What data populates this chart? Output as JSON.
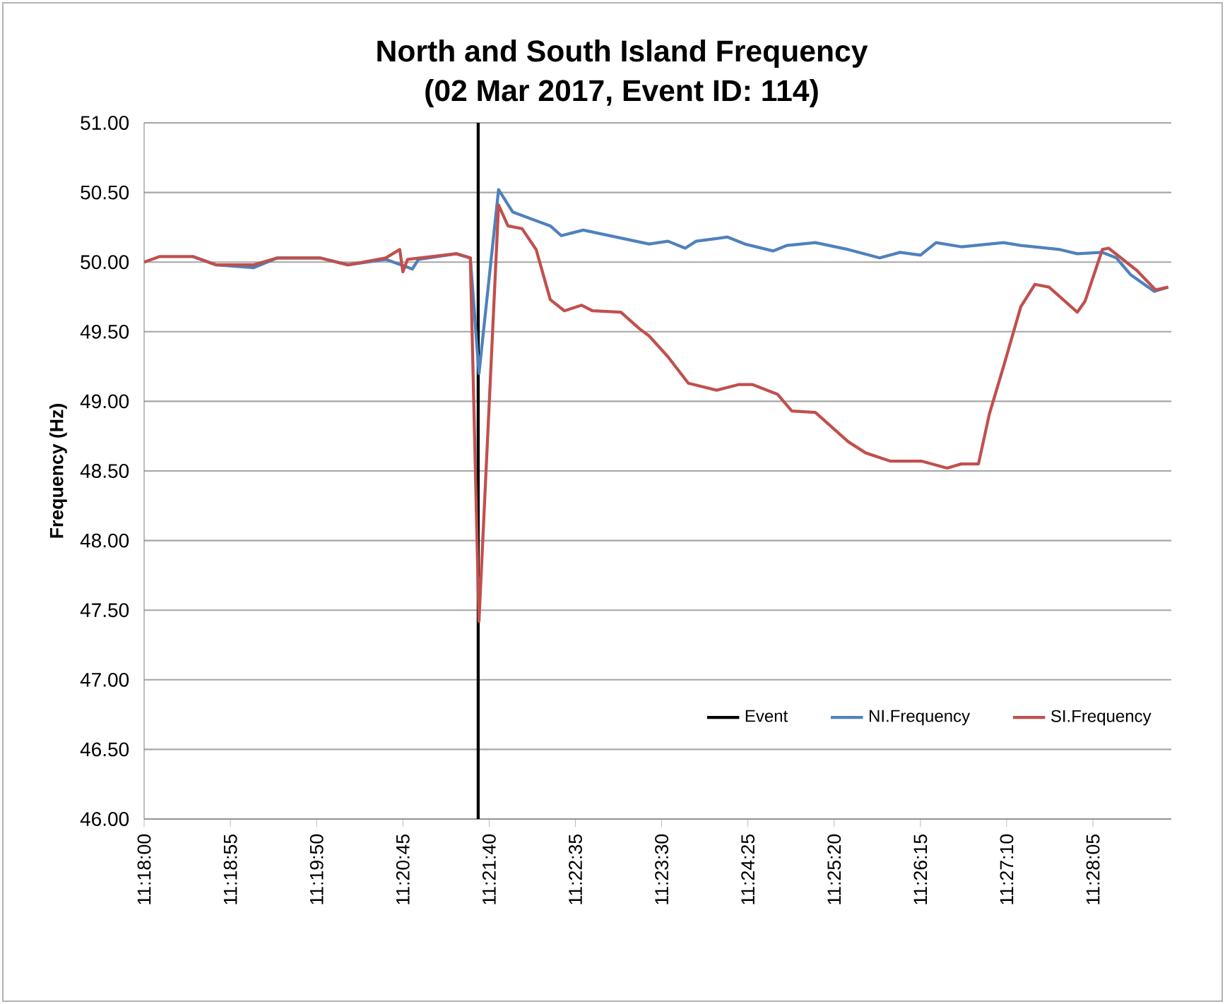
{
  "chart_data": {
    "type": "line",
    "title": "North and South Island Frequency",
    "subtitle": "(02 Mar 2017, Event ID: 114)",
    "ylabel": "Frequency (Hz)",
    "xlim": [
      11.3,
      11.48194
    ],
    "ylim": [
      46,
      51
    ],
    "xticks": [
      {
        "value": 11.3,
        "label": "11:18:00"
      },
      {
        "value": 11.31528,
        "label": "11:18:55"
      },
      {
        "value": 11.33056,
        "label": "11:19:50"
      },
      {
        "value": 11.34583,
        "label": "11:20:45"
      },
      {
        "value": 11.36111,
        "label": "11:21:40"
      },
      {
        "value": 11.37639,
        "label": "11:22:35"
      },
      {
        "value": 11.39167,
        "label": "11:23:30"
      },
      {
        "value": 11.40694,
        "label": "11:24:25"
      },
      {
        "value": 11.42222,
        "label": "11:25:20"
      },
      {
        "value": 11.4375,
        "label": "11:26:15"
      },
      {
        "value": 11.45278,
        "label": "11:27:10"
      },
      {
        "value": 11.46806,
        "label": "11:28:05"
      }
    ],
    "yticks": [
      {
        "value": 46,
        "label": "46.00"
      },
      {
        "value": 46.5,
        "label": "46.50"
      },
      {
        "value": 47,
        "label": "47.00"
      },
      {
        "value": 47.5,
        "label": "47.50"
      },
      {
        "value": 48,
        "label": "48.00"
      },
      {
        "value": 48.5,
        "label": "48.50"
      },
      {
        "value": 49,
        "label": "49.00"
      },
      {
        "value": 49.5,
        "label": "49.50"
      },
      {
        "value": 50,
        "label": "50.00"
      },
      {
        "value": 50.5,
        "label": "50.50"
      },
      {
        "value": 51,
        "label": "51.00"
      }
    ],
    "grid": "y",
    "legend": "bottom right",
    "series": [
      {
        "name": "Event",
        "color": "#000000",
        "x": [
          11.35917,
          11.35917
        ],
        "values": [
          46,
          51
        ]
      },
      {
        "name": "NI.Frequency",
        "color": "#4f81bd",
        "x": [
          11.30861,
          11.31278,
          11.31944,
          11.32361,
          11.33111,
          11.33611,
          11.34278,
          11.3475,
          11.34861,
          11.35528,
          11.35778,
          11.35931,
          11.36278,
          11.36528,
          11.37194,
          11.37389,
          11.37778,
          11.38944,
          11.39278,
          11.39583,
          11.39778,
          11.40333,
          11.40639,
          11.41139,
          11.41389,
          11.41889,
          11.42472,
          11.43028,
          11.43389,
          11.4375,
          11.44028,
          11.44472,
          11.45222,
          11.45528,
          11.46222,
          11.46528,
          11.46972,
          11.47222,
          11.47472,
          11.47889,
          11.48139
        ],
        "values": [
          50.04,
          49.98,
          49.96,
          50.03,
          50.03,
          49.98,
          50.02,
          49.95,
          50.02,
          50.06,
          50.03,
          49.2,
          50.52,
          50.36,
          50.26,
          50.19,
          50.23,
          50.13,
          50.15,
          50.1,
          50.15,
          50.18,
          50.13,
          50.08,
          50.12,
          50.14,
          50.09,
          50.03,
          50.07,
          50.05,
          50.14,
          50.11,
          50.14,
          50.12,
          50.09,
          50.06,
          50.07,
          50.03,
          49.91,
          49.79,
          49.82
        ]
      },
      {
        "name": "SI.Frequency",
        "color": "#c0504d",
        "x": [
          11.3,
          11.30278,
          11.30861,
          11.31278,
          11.31944,
          11.32361,
          11.33111,
          11.33611,
          11.34278,
          11.34528,
          11.34583,
          11.34667,
          11.35528,
          11.35778,
          11.35931,
          11.36278,
          11.36444,
          11.36694,
          11.36944,
          11.37194,
          11.37444,
          11.3775,
          11.37944,
          11.38444,
          11.38778,
          11.38944,
          11.39278,
          11.39639,
          11.40139,
          11.40528,
          11.40778,
          11.41222,
          11.41472,
          11.41889,
          11.42472,
          11.42778,
          11.43222,
          11.43778,
          11.44222,
          11.44472,
          11.44778,
          11.44972,
          11.45222,
          11.45528,
          11.45778,
          11.46028,
          11.46528,
          11.46667,
          11.46972,
          11.47083,
          11.47583,
          11.47917,
          11.48139
        ],
        "values": [
          50.0,
          50.04,
          50.04,
          49.98,
          49.98,
          50.03,
          50.03,
          49.98,
          50.03,
          50.09,
          49.93,
          50.02,
          50.06,
          50.03,
          47.42,
          50.41,
          50.26,
          50.24,
          50.09,
          49.73,
          49.65,
          49.69,
          49.65,
          49.64,
          49.52,
          49.47,
          49.32,
          49.13,
          49.08,
          49.12,
          49.12,
          49.05,
          48.93,
          48.92,
          48.71,
          48.63,
          48.57,
          48.57,
          48.52,
          48.55,
          48.55,
          48.91,
          49.25,
          49.68,
          49.84,
          49.82,
          49.64,
          49.72,
          50.09,
          50.1,
          49.94,
          49.8,
          49.82
        ]
      }
    ]
  }
}
